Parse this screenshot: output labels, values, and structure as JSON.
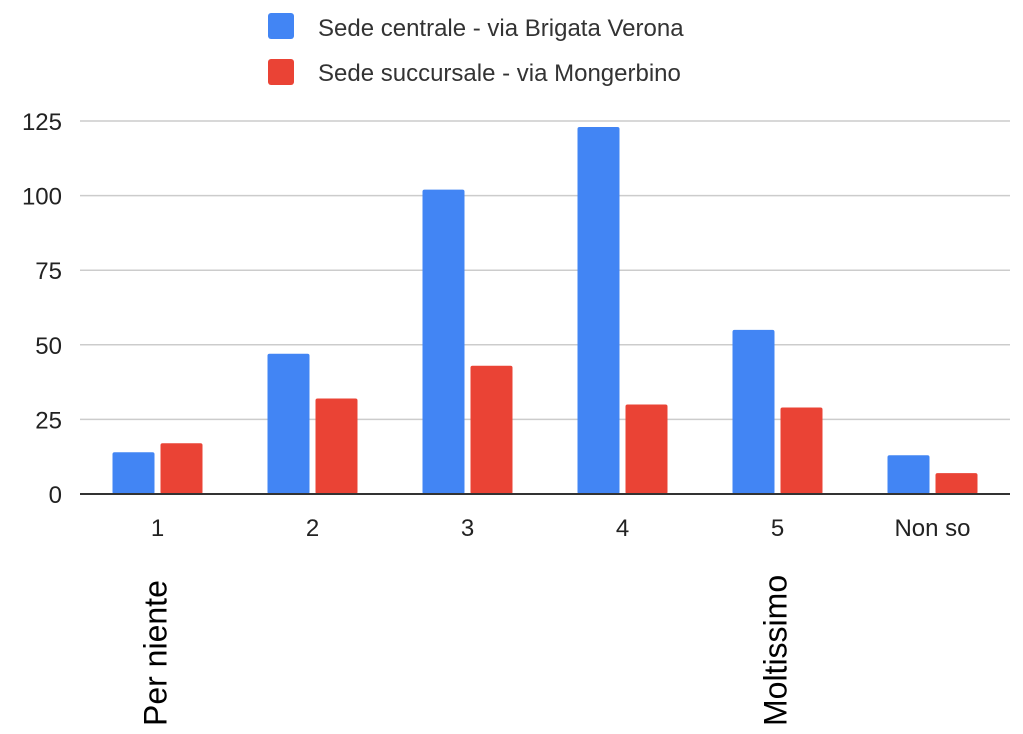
{
  "chart_data": {
    "type": "bar",
    "categories": [
      "1",
      "2",
      "3",
      "4",
      "5",
      "Non so"
    ],
    "series": [
      {
        "name": "Sede centrale - via Brigata Verona",
        "color": "#4285F4",
        "values": [
          14,
          47,
          102,
          123,
          55,
          13
        ]
      },
      {
        "name": "Sede succursale - via Mongerbino",
        "color": "#EA4335",
        "values": [
          17,
          32,
          43,
          30,
          29,
          7
        ]
      }
    ],
    "ylim": [
      0,
      125
    ],
    "yticks": [
      "0",
      "25",
      "50",
      "75",
      "100",
      "125"
    ],
    "grid": true,
    "legend_position": "top",
    "annotations": [
      {
        "category": "1",
        "text": "Per niente"
      },
      {
        "category": "5",
        "text": "Moltissimo"
      }
    ]
  }
}
